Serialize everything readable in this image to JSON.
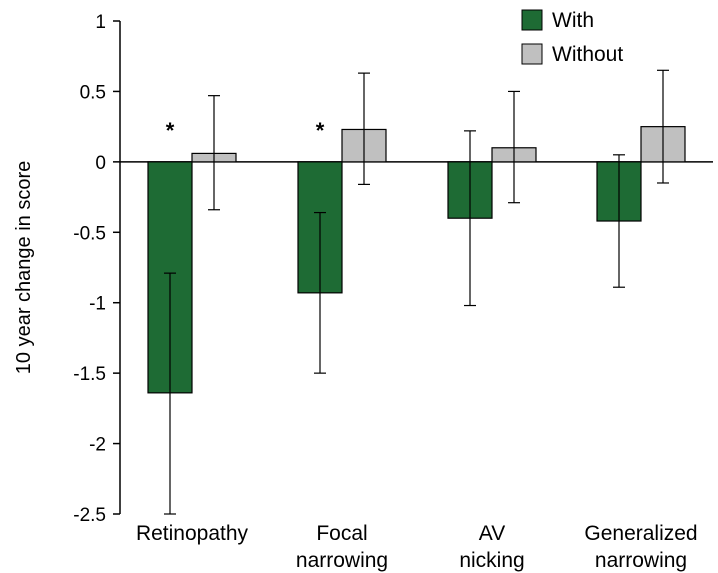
{
  "chart_data": {
    "type": "bar",
    "categories": [
      "Retinopathy",
      "Focal narrowing",
      "AV nicking",
      "Generalized narrowing"
    ],
    "category_lines": [
      [
        "Retinopathy"
      ],
      [
        "Focal",
        "narrowing"
      ],
      [
        "AV",
        "nicking"
      ],
      [
        "Generalized",
        "narrowing"
      ]
    ],
    "series": [
      {
        "name": "With",
        "color": "#1e6b34",
        "values": [
          -1.64,
          -0.93,
          -0.4,
          -0.42
        ],
        "error_low": [
          -2.5,
          -1.5,
          -1.02,
          -0.89
        ],
        "error_high": [
          -0.79,
          -0.36,
          0.22,
          0.05
        ]
      },
      {
        "name": "Without",
        "color": "#c0c0c0",
        "values": [
          0.06,
          0.23,
          0.1,
          0.25
        ],
        "error_low": [
          -0.34,
          -0.16,
          -0.29,
          -0.15
        ],
        "error_high": [
          0.47,
          0.63,
          0.5,
          0.65
        ]
      }
    ],
    "annotations": [
      {
        "category": "Retinopathy",
        "text": "*"
      },
      {
        "category": "Focal narrowing",
        "text": "*"
      }
    ],
    "ylabel": "10 year change in score",
    "xlabel": "",
    "title": "",
    "ylim": [
      -2.5,
      1
    ],
    "yticks": [
      1,
      0.5,
      0,
      -0.5,
      -1,
      -1.5,
      -2,
      -2.5
    ],
    "ytick_labels": [
      "1",
      "0.5",
      "0",
      "-0.5",
      "-1",
      "-1.5",
      "-2",
      "-2.5"
    ],
    "grid": false,
    "legend_position": "top-right"
  }
}
